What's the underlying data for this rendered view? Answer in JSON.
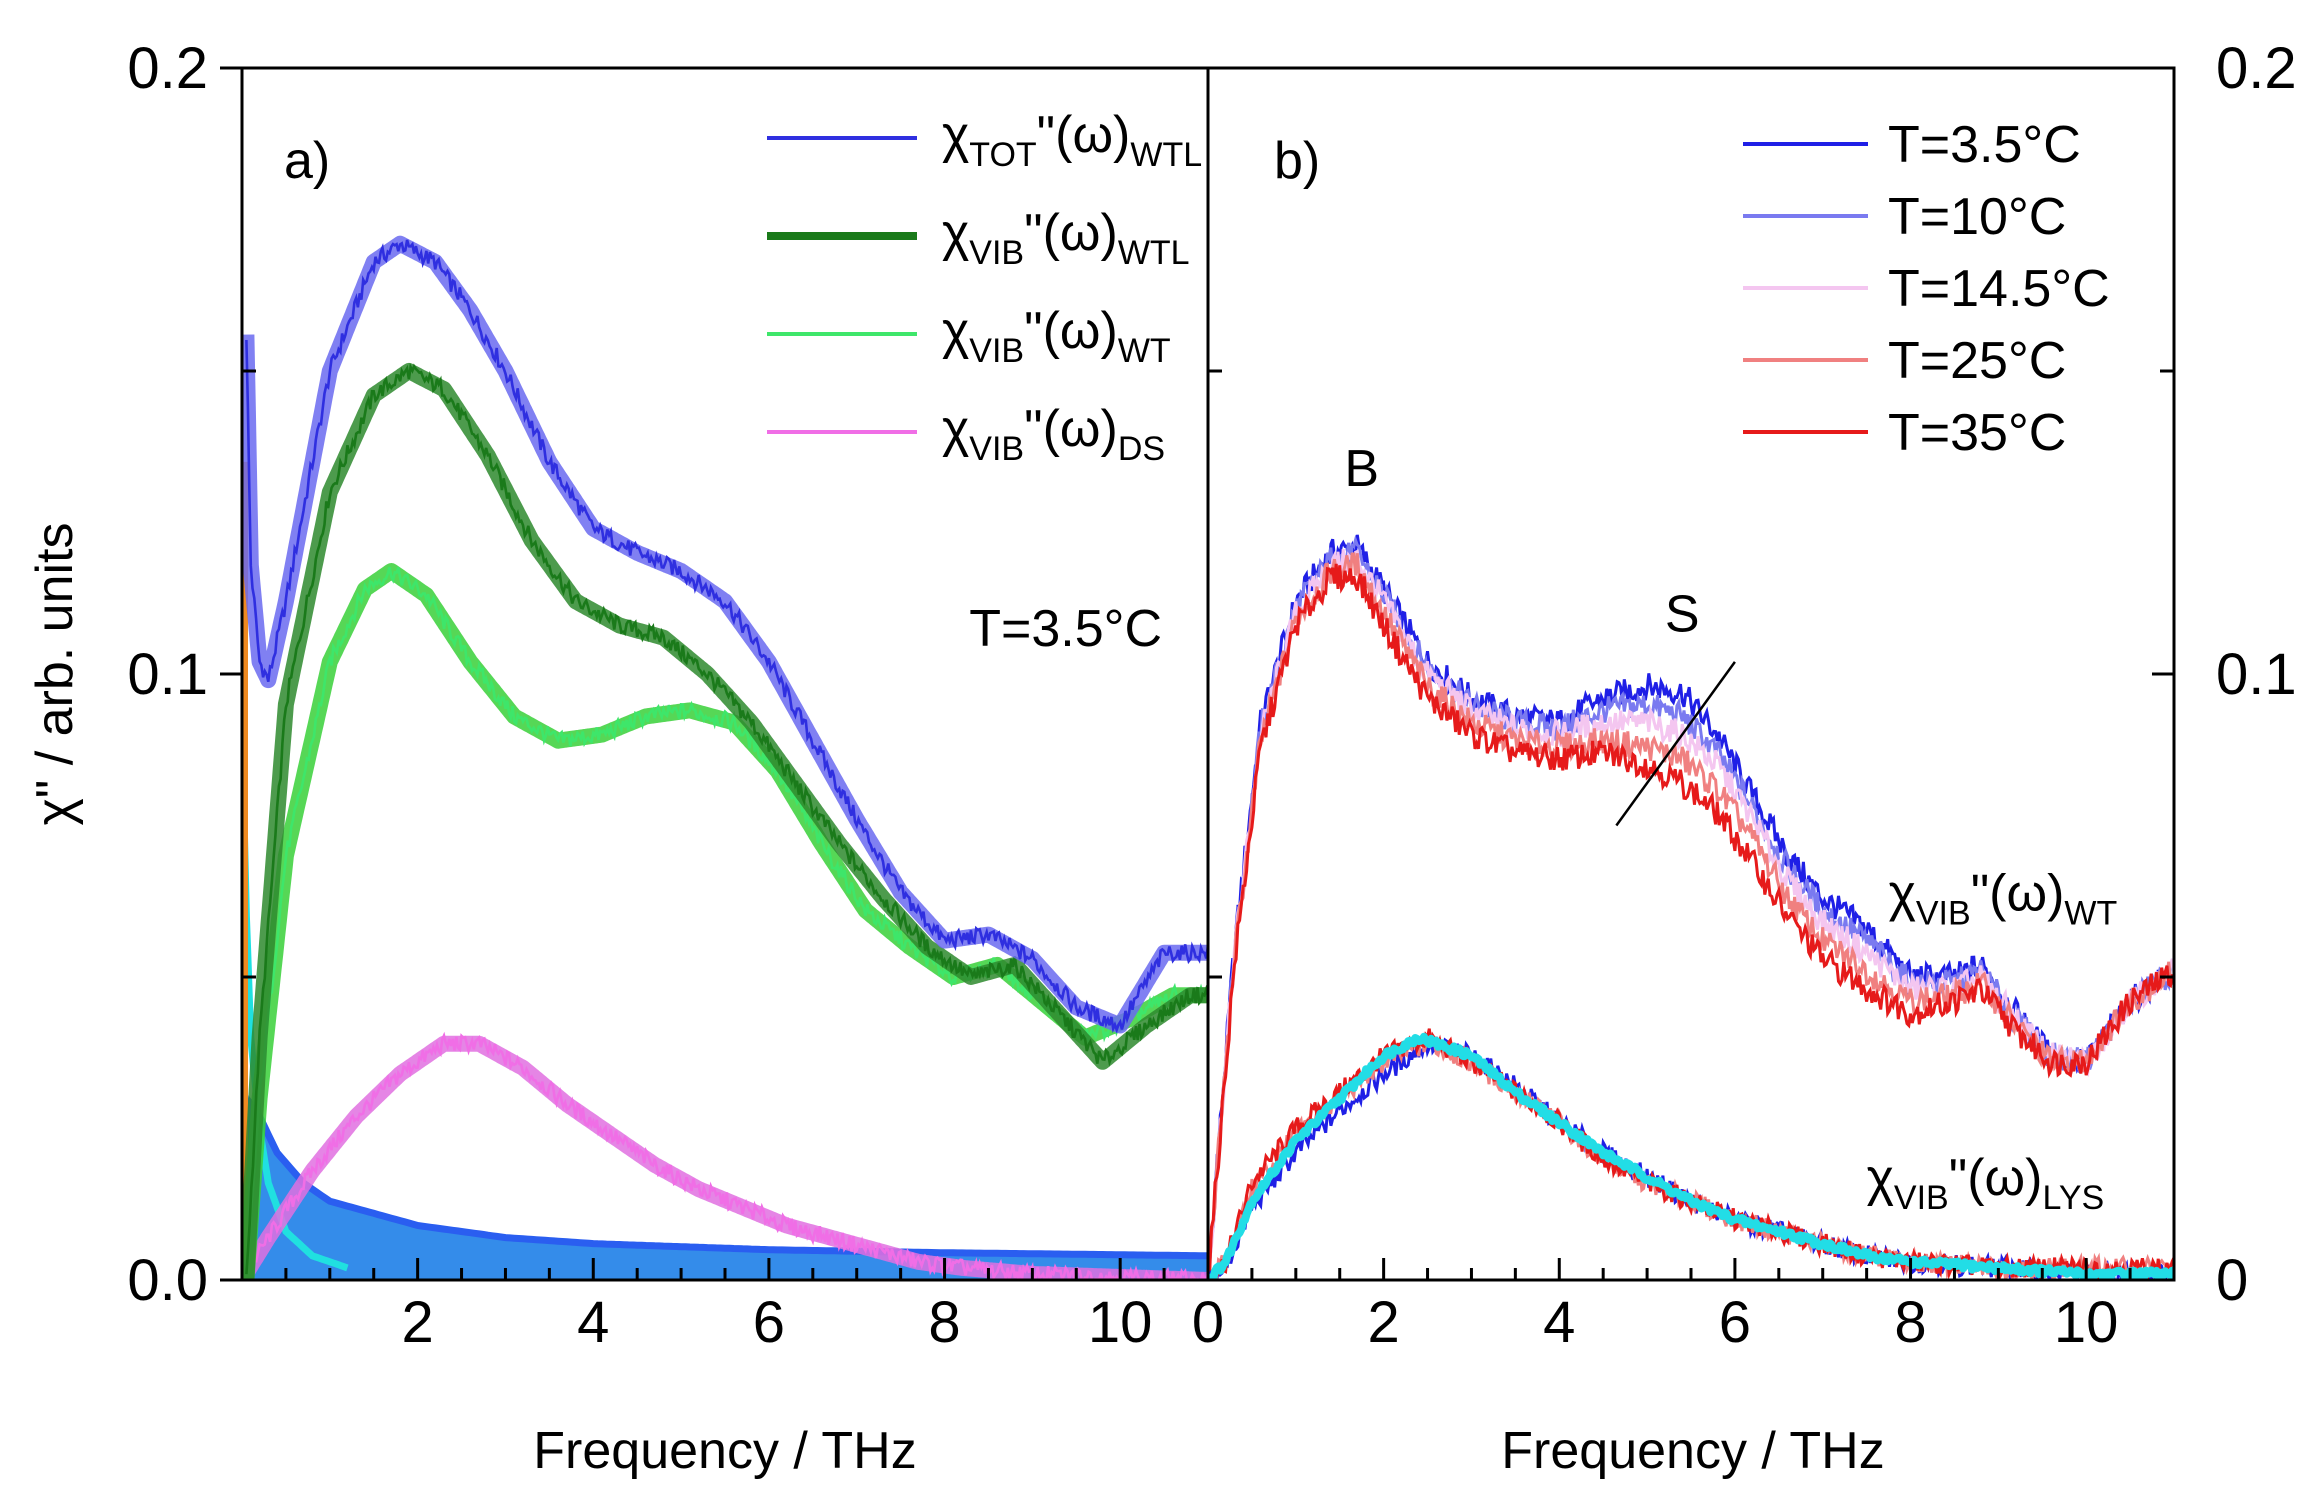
{
  "figure": {
    "ylabel": "χ\" / arb. units",
    "xlabel": "Frequency / THz"
  },
  "chart_data": [
    {
      "type": "line",
      "panel_label": "a)",
      "xlabel": "Frequency / THz",
      "ylabel": "χ\" / arb. units",
      "xlim": [
        0,
        11
      ],
      "ylim": [
        0,
        0.2
      ],
      "xticks": [
        "2",
        "4",
        "6",
        "8",
        "10"
      ],
      "yticks": [
        "0.0",
        "0.1",
        "0.2"
      ],
      "annotation": "T=3.5°C",
      "legend": [
        {
          "base": "χ",
          "sub": "TOT",
          "mid": "\"(ω)",
          "tail": "WTL",
          "color": "#2f2fe0"
        },
        {
          "base": "χ",
          "sub": "VIB",
          "mid": "\"(ω)",
          "tail": "WTL",
          "color": "#1a7a1a"
        },
        {
          "base": "χ",
          "sub": "VIB",
          "mid": "\"(ω)",
          "tail": "WT",
          "color": "#3ee66a"
        },
        {
          "base": "χ",
          "sub": "VIB",
          "mid": "\"(ω)",
          "tail": "DS",
          "color": "#f06ee6"
        }
      ],
      "series": [
        {
          "name": "χTOT\"(ω)WTL",
          "color": "#2f2fe0",
          "fit_color": "#6a6af0",
          "x": [
            0.05,
            0.1,
            0.2,
            0.3,
            0.5,
            1.0,
            1.5,
            1.8,
            2.2,
            2.6,
            3.0,
            3.5,
            4.0,
            4.5,
            5.0,
            5.5,
            6.0,
            6.5,
            7.0,
            7.5,
            8.0,
            8.5,
            9.0,
            9.5,
            10.0,
            10.5,
            11.0
          ],
          "y": [
            0.156,
            0.118,
            0.102,
            0.099,
            0.112,
            0.15,
            0.168,
            0.171,
            0.168,
            0.16,
            0.15,
            0.135,
            0.124,
            0.12,
            0.117,
            0.112,
            0.102,
            0.089,
            0.076,
            0.064,
            0.056,
            0.057,
            0.053,
            0.045,
            0.042,
            0.054,
            0.054
          ]
        },
        {
          "name": "χVIB\"(ω)WTL",
          "color": "#1a7a1a",
          "fit_color": "#2e8a2e",
          "x": [
            0.05,
            0.2,
            0.5,
            1.0,
            1.5,
            1.9,
            2.3,
            2.8,
            3.3,
            3.8,
            4.3,
            4.8,
            5.3,
            5.8,
            6.3,
            6.8,
            7.3,
            7.8,
            8.3,
            8.8,
            9.3,
            9.8,
            10.3,
            10.8,
            11.0
          ],
          "y": [
            0.0,
            0.04,
            0.095,
            0.13,
            0.146,
            0.15,
            0.147,
            0.136,
            0.122,
            0.112,
            0.108,
            0.106,
            0.1,
            0.092,
            0.082,
            0.072,
            0.063,
            0.055,
            0.05,
            0.052,
            0.044,
            0.036,
            0.042,
            0.047,
            0.047
          ]
        },
        {
          "name": "χVIB\"(ω)WT",
          "color": "#3ee66a",
          "fit_color": "#38d038",
          "x": [
            0.05,
            0.2,
            0.5,
            1.0,
            1.4,
            1.7,
            2.1,
            2.6,
            3.1,
            3.6,
            4.1,
            4.6,
            5.1,
            5.6,
            6.1,
            6.6,
            7.1,
            7.6,
            8.1,
            8.6,
            9.1,
            9.6,
            10.1,
            10.6,
            11.0
          ],
          "y": [
            0.0,
            0.03,
            0.07,
            0.102,
            0.114,
            0.117,
            0.113,
            0.102,
            0.093,
            0.089,
            0.09,
            0.093,
            0.094,
            0.092,
            0.084,
            0.072,
            0.061,
            0.055,
            0.05,
            0.052,
            0.046,
            0.04,
            0.043,
            0.047,
            0.047
          ]
        },
        {
          "name": "χVIB\"(ω)DS",
          "color": "#f06ee6",
          "fit_color": "#e070e0",
          "x": [
            0.0,
            0.3,
            0.8,
            1.3,
            1.8,
            2.3,
            2.7,
            3.2,
            3.7,
            4.2,
            4.7,
            5.2,
            5.7,
            6.2,
            6.7,
            7.2,
            7.7,
            8.2,
            9.0,
            10.0,
            11.0
          ],
          "y": [
            0.0,
            0.007,
            0.018,
            0.027,
            0.034,
            0.039,
            0.039,
            0.035,
            0.029,
            0.024,
            0.019,
            0.015,
            0.012,
            0.009,
            0.007,
            0.005,
            0.003,
            0.002,
            0.001,
            0.0005,
            0.0
          ]
        },
        {
          "name": "relaxation (filled)",
          "color": "#1a7ae0",
          "fit_color": "#2a6af0",
          "x": [
            0.02,
            0.1,
            0.2,
            0.4,
            0.7,
            1.0,
            1.5,
            2.0,
            3.0,
            4.0,
            6.0,
            8.0,
            11.0
          ],
          "y": [
            0.02,
            0.029,
            0.027,
            0.021,
            0.016,
            0.013,
            0.011,
            0.009,
            0.007,
            0.006,
            0.005,
            0.0045,
            0.004
          ]
        },
        {
          "name": "fast relaxation (cyan)",
          "color": "#20e0e0",
          "fit_color": "#20e0e0",
          "x": [
            0.02,
            0.05,
            0.1,
            0.2,
            0.3,
            0.5,
            0.8,
            1.2
          ],
          "y": [
            0.078,
            0.06,
            0.04,
            0.025,
            0.016,
            0.008,
            0.004,
            0.002
          ]
        }
      ]
    },
    {
      "type": "line",
      "panel_label": "b)",
      "xlabel": "Frequency / THz",
      "xlim": [
        0,
        11
      ],
      "ylim": [
        0,
        0.2
      ],
      "xticks": [
        "0",
        "2",
        "4",
        "6",
        "8",
        "10"
      ],
      "yticks": [
        "0",
        "0.1",
        "0.2"
      ],
      "annotations": [
        "B",
        "S"
      ],
      "series_labels": [
        {
          "base": "χ",
          "sub": "VIB",
          "mid": "\"(ω)",
          "tail": "WT"
        },
        {
          "base": "χ",
          "sub": "VIB",
          "mid": "\"(ω)",
          "tail": "LYS"
        }
      ],
      "legend": [
        {
          "label": "T=3.5°C",
          "color": "#1f1fe6"
        },
        {
          "label": "T=10°C",
          "color": "#7a7af0"
        },
        {
          "label": "T=14.5°C",
          "color": "#f4c6f0"
        },
        {
          "label": "T=25°C",
          "color": "#f08080"
        },
        {
          "label": "T=35°C",
          "color": "#e61a1a"
        }
      ],
      "series": [
        {
          "name": "T=3.5°C",
          "color": "#1f1fe6",
          "x": [
            0.0,
            0.3,
            0.6,
            1.0,
            1.4,
            1.7,
            2.0,
            2.5,
            3.0,
            3.5,
            4.0,
            4.5,
            5.0,
            5.4,
            5.8,
            6.2,
            6.6,
            7.0,
            7.5,
            8.0,
            8.5,
            8.8,
            9.2,
            9.6,
            10.0,
            10.5,
            11.0
          ],
          "y": [
            0.0,
            0.055,
            0.092,
            0.112,
            0.12,
            0.121,
            0.114,
            0.102,
            0.096,
            0.093,
            0.092,
            0.096,
            0.098,
            0.097,
            0.09,
            0.08,
            0.07,
            0.063,
            0.058,
            0.05,
            0.05,
            0.052,
            0.044,
            0.037,
            0.036,
            0.046,
            0.051
          ]
        },
        {
          "name": "T=10°C",
          "color": "#7a7af0",
          "x": [
            0.0,
            0.3,
            0.6,
            1.0,
            1.4,
            1.7,
            2.0,
            2.5,
            3.0,
            3.5,
            4.0,
            4.5,
            5.0,
            5.4,
            5.8,
            6.2,
            6.6,
            7.0,
            7.5,
            8.0,
            8.5,
            8.8,
            9.2,
            9.6,
            10.0,
            10.5,
            11.0
          ],
          "y": [
            0.0,
            0.054,
            0.091,
            0.111,
            0.119,
            0.12,
            0.113,
            0.101,
            0.095,
            0.092,
            0.091,
            0.094,
            0.095,
            0.093,
            0.087,
            0.078,
            0.068,
            0.061,
            0.056,
            0.049,
            0.049,
            0.051,
            0.043,
            0.037,
            0.036,
            0.046,
            0.051
          ]
        },
        {
          "name": "T=14.5°C",
          "color": "#f4c6f0",
          "x": [
            0.0,
            0.3,
            0.6,
            1.0,
            1.4,
            1.7,
            2.0,
            2.5,
            3.0,
            3.5,
            4.0,
            4.5,
            5.0,
            5.4,
            5.8,
            6.2,
            6.6,
            7.0,
            7.5,
            8.0,
            8.5,
            8.8,
            9.2,
            9.6,
            10.0,
            10.5,
            11.0
          ],
          "y": [
            0.0,
            0.054,
            0.09,
            0.11,
            0.118,
            0.119,
            0.112,
            0.1,
            0.094,
            0.091,
            0.09,
            0.092,
            0.092,
            0.09,
            0.085,
            0.076,
            0.066,
            0.059,
            0.054,
            0.048,
            0.048,
            0.05,
            0.043,
            0.037,
            0.036,
            0.046,
            0.051
          ]
        },
        {
          "name": "T=25°C",
          "color": "#f08080",
          "x": [
            0.0,
            0.3,
            0.6,
            1.0,
            1.4,
            1.7,
            2.0,
            2.5,
            3.0,
            3.5,
            4.0,
            4.5,
            5.0,
            5.4,
            5.8,
            6.2,
            6.6,
            7.0,
            7.5,
            8.0,
            8.5,
            8.8,
            9.2,
            9.6,
            10.0,
            10.5,
            11.0
          ],
          "y": [
            0.0,
            0.053,
            0.089,
            0.109,
            0.117,
            0.118,
            0.11,
            0.098,
            0.092,
            0.089,
            0.088,
            0.089,
            0.088,
            0.086,
            0.081,
            0.073,
            0.063,
            0.056,
            0.051,
            0.046,
            0.047,
            0.049,
            0.042,
            0.036,
            0.036,
            0.046,
            0.051
          ]
        },
        {
          "name": "T=35°C",
          "color": "#e61a1a",
          "x": [
            0.0,
            0.3,
            0.6,
            1.0,
            1.4,
            1.7,
            2.0,
            2.5,
            3.0,
            3.5,
            4.0,
            4.5,
            5.0,
            5.4,
            5.8,
            6.2,
            6.6,
            7.0,
            7.5,
            8.0,
            8.5,
            8.8,
            9.2,
            9.6,
            10.0,
            10.5,
            11.0
          ],
          "y": [
            0.0,
            0.052,
            0.088,
            0.108,
            0.116,
            0.116,
            0.108,
            0.096,
            0.09,
            0.087,
            0.086,
            0.087,
            0.085,
            0.082,
            0.077,
            0.069,
            0.06,
            0.053,
            0.048,
            0.044,
            0.046,
            0.048,
            0.041,
            0.036,
            0.036,
            0.046,
            0.051
          ]
        },
        {
          "name": "LYS T=35°C",
          "color": "#e61a1a",
          "x": [
            0.0,
            0.2,
            0.5,
            1.0,
            1.5,
            2.0,
            2.5,
            3.0,
            3.5,
            4.0,
            4.5,
            5.0,
            5.5,
            6.0,
            6.5,
            7.0,
            7.5,
            8.0,
            9.0,
            10.0,
            11.0
          ],
          "y": [
            0.0,
            0.003,
            0.016,
            0.025,
            0.031,
            0.037,
            0.04,
            0.036,
            0.031,
            0.026,
            0.02,
            0.016,
            0.013,
            0.01,
            0.008,
            0.006,
            0.004,
            0.003,
            0.002,
            0.002,
            0.002
          ]
        },
        {
          "name": "LYS T=25°C",
          "color": "#f08080",
          "x": [
            0.0,
            0.2,
            0.5,
            1.0,
            1.5,
            2.0,
            2.5,
            3.0,
            3.5,
            4.0,
            4.5,
            5.0,
            5.5,
            6.0,
            6.5,
            7.0,
            7.5,
            8.0,
            9.0,
            10.0,
            11.0
          ],
          "y": [
            0.0,
            0.003,
            0.015,
            0.024,
            0.03,
            0.036,
            0.039,
            0.036,
            0.031,
            0.026,
            0.02,
            0.016,
            0.013,
            0.01,
            0.008,
            0.006,
            0.004,
            0.003,
            0.002,
            0.002,
            0.002
          ]
        },
        {
          "name": "LYS T=3.5°C",
          "color": "#1f1fe6",
          "x": [
            0.0,
            0.2,
            0.5,
            1.0,
            1.5,
            2.0,
            2.5,
            3.0,
            3.5,
            4.0,
            4.5,
            5.0,
            5.5,
            6.0,
            6.5,
            7.0,
            7.5,
            8.0,
            9.0,
            10.0,
            11.0
          ],
          "y": [
            0.0,
            0.002,
            0.012,
            0.021,
            0.028,
            0.034,
            0.039,
            0.037,
            0.032,
            0.026,
            0.021,
            0.017,
            0.013,
            0.01,
            0.008,
            0.006,
            0.004,
            0.003,
            0.002,
            0.001,
            0.001
          ]
        },
        {
          "name": "LYS fit",
          "color": "#22dde6",
          "x": [
            0.0,
            0.2,
            0.5,
            1.0,
            1.5,
            2.0,
            2.4,
            3.0,
            3.5,
            4.0,
            4.5,
            5.0,
            5.5,
            6.0,
            6.5,
            7.0,
            7.5,
            8.0,
            9.0,
            10.0,
            11.0
          ],
          "y": [
            0.0,
            0.003,
            0.013,
            0.023,
            0.03,
            0.037,
            0.04,
            0.037,
            0.031,
            0.026,
            0.021,
            0.017,
            0.013,
            0.01,
            0.008,
            0.006,
            0.004,
            0.003,
            0.002,
            0.001,
            0.001
          ]
        }
      ]
    }
  ]
}
